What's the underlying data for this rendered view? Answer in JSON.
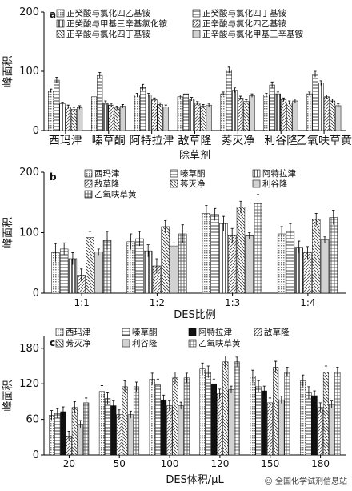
{
  "chart_data": [
    {
      "type": "bar",
      "panel_label": "a",
      "categories": [
        "西玛津",
        "嗪草酮",
        "阿特拉津",
        "敌草隆",
        "莠灭净",
        "利谷隆",
        "乙氧呋草黄"
      ],
      "xlabel": "除草剂",
      "ylabel": "峰面积",
      "ylim": [
        0,
        200
      ],
      "yticks": [
        0,
        100,
        200
      ],
      "legend_columns": 2,
      "series": [
        {
          "name": "正癸酸与氯化四乙基铵",
          "values": [
            67,
            57,
            60,
            57,
            62,
            60,
            62
          ],
          "errors": [
            3,
            3,
            3,
            3,
            3,
            3,
            3
          ]
        },
        {
          "name": "正癸酸与氯化四丁基铵",
          "values": [
            85,
            93,
            73,
            62,
            102,
            77,
            95
          ],
          "errors": [
            5,
            5,
            5,
            5,
            5,
            5,
            5
          ]
        },
        {
          "name": "正癸酸与甲基三辛基氯化铵",
          "values": [
            45,
            47,
            60,
            53,
            68,
            62,
            80
          ],
          "errors": [
            3,
            3,
            3,
            3,
            4,
            3,
            4
          ]
        },
        {
          "name": "正辛酸与氯化四乙基铵",
          "values": [
            40,
            43,
            52,
            46,
            55,
            52,
            57
          ],
          "errors": [
            3,
            3,
            3,
            3,
            3,
            3,
            3
          ]
        },
        {
          "name": "正辛酸与氯化四丁基铵",
          "values": [
            36,
            38,
            44,
            41,
            49,
            47,
            50
          ],
          "errors": [
            3,
            3,
            3,
            3,
            3,
            3,
            3
          ]
        },
        {
          "name": "正辛酸与氯化甲基三辛基铵",
          "values": [
            39,
            41,
            40,
            43,
            59,
            50,
            42
          ],
          "errors": [
            3,
            3,
            3,
            3,
            3,
            3,
            3
          ]
        }
      ]
    },
    {
      "type": "bar",
      "panel_label": "b",
      "categories": [
        "1:1",
        "1:2",
        "1:3",
        "1:4"
      ],
      "xlabel": "DES比例",
      "ylabel": "峰面积",
      "ylim": [
        0,
        200
      ],
      "yticks": [
        0,
        100,
        200
      ],
      "legend_columns": 3,
      "series": [
        {
          "name": "西玛津",
          "values": [
            67,
            85,
            132,
            98
          ],
          "errors": [
            15,
            13,
            13,
            12
          ]
        },
        {
          "name": "嗪草酮",
          "values": [
            73,
            90,
            130,
            103
          ],
          "errors": [
            10,
            12,
            10,
            12
          ]
        },
        {
          "name": "阿特拉津",
          "values": [
            57,
            70,
            115,
            76
          ],
          "errors": [
            10,
            10,
            12,
            10
          ]
        },
        {
          "name": "敌草隆",
          "values": [
            30,
            45,
            95,
            67
          ],
          "errors": [
            10,
            12,
            12,
            10
          ]
        },
        {
          "name": "莠灭净",
          "values": [
            92,
            110,
            142,
            122
          ],
          "errors": [
            10,
            10,
            10,
            10
          ]
        },
        {
          "name": "利谷隆",
          "values": [
            68,
            78,
            95,
            88
          ],
          "errors": [
            5,
            5,
            5,
            5
          ]
        },
        {
          "name": "乙氧呋草黄",
          "values": [
            87,
            98,
            148,
            125
          ],
          "errors": [
            15,
            15,
            15,
            12
          ]
        }
      ]
    },
    {
      "type": "bar",
      "panel_label": "c",
      "categories": [
        "20",
        "50",
        "100",
        "120",
        "150",
        "180"
      ],
      "xlabel": "DES体积/μL",
      "ylabel": "峰面积",
      "ylim": [
        0,
        200
      ],
      "yticks": [
        0,
        60,
        120,
        180
      ],
      "legend_columns": 4,
      "series": [
        {
          "name": "西玛津",
          "values": [
            67,
            107,
            128,
            145,
            133,
            125
          ],
          "errors": [
            8,
            10,
            10,
            10,
            10,
            10
          ]
        },
        {
          "name": "嗪草酮",
          "values": [
            70,
            95,
            118,
            140,
            115,
            105
          ],
          "errors": [
            8,
            10,
            10,
            10,
            10,
            10
          ]
        },
        {
          "name": "阿特拉津",
          "values": [
            73,
            83,
            93,
            120,
            108,
            100
          ],
          "errors": [
            8,
            8,
            8,
            8,
            8,
            8
          ]
        },
        {
          "name": "敌草隆",
          "values": [
            32,
            68,
            83,
            103,
            88,
            80
          ],
          "errors": [
            8,
            8,
            8,
            8,
            8,
            8
          ]
        },
        {
          "name": "莠灭净",
          "values": [
            80,
            115,
            130,
            157,
            148,
            140
          ],
          "errors": [
            10,
            10,
            10,
            10,
            10,
            10
          ]
        },
        {
          "name": "利谷隆",
          "values": [
            52,
            68,
            83,
            110,
            93,
            85
          ],
          "errors": [
            6,
            6,
            6,
            6,
            6,
            6
          ]
        },
        {
          "name": "乙氧呋草黄",
          "values": [
            88,
            115,
            130,
            157,
            140,
            140
          ],
          "errors": [
            8,
            8,
            8,
            8,
            8,
            8
          ]
        }
      ]
    }
  ],
  "watermark": {
    "icon": "wechat-icon",
    "text": "全国化学试剂信息站"
  }
}
